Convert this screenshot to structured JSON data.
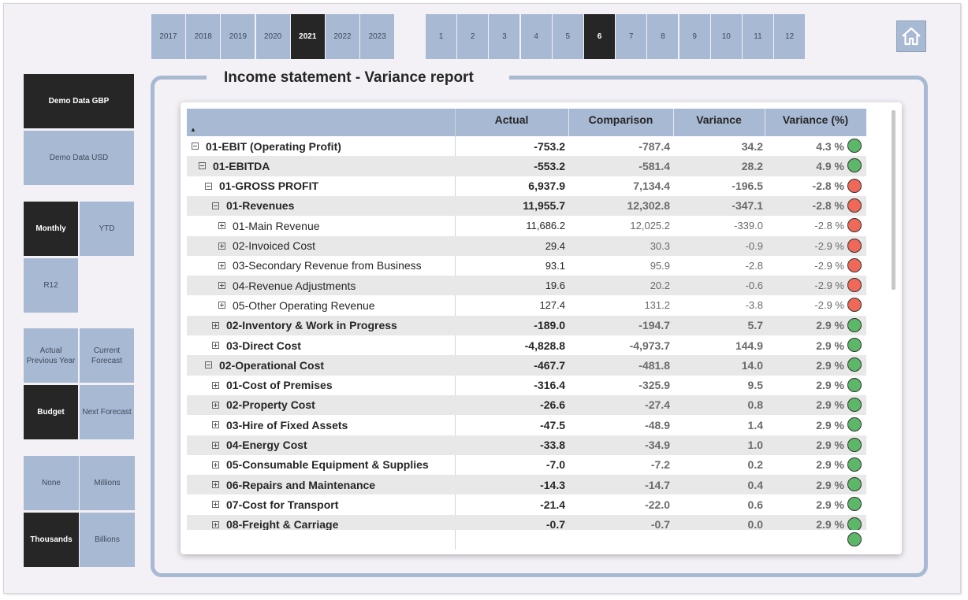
{
  "years": [
    {
      "label": "2017",
      "selected": false
    },
    {
      "label": "2018",
      "selected": false
    },
    {
      "label": "2019",
      "selected": false
    },
    {
      "label": "2020",
      "selected": false
    },
    {
      "label": "2021",
      "selected": true
    },
    {
      "label": "2022",
      "selected": false
    },
    {
      "label": "2023",
      "selected": false
    }
  ],
  "months": [
    {
      "label": "1",
      "selected": false
    },
    {
      "label": "2",
      "selected": false
    },
    {
      "label": "3",
      "selected": false
    },
    {
      "label": "4",
      "selected": false
    },
    {
      "label": "5",
      "selected": false
    },
    {
      "label": "6",
      "selected": true
    },
    {
      "label": "7",
      "selected": false
    },
    {
      "label": "8",
      "selected": false
    },
    {
      "label": "9",
      "selected": false
    },
    {
      "label": "10",
      "selected": false
    },
    {
      "label": "11",
      "selected": false
    },
    {
      "label": "12",
      "selected": false
    }
  ],
  "home_icon": "home-icon",
  "sidebar": {
    "dataset": [
      {
        "label": "Demo Data GBP",
        "selected": true
      },
      {
        "label": "Demo Data USD",
        "selected": false
      }
    ],
    "period": [
      {
        "label": "Monthly",
        "selected": true
      },
      {
        "label": "YTD",
        "selected": false
      },
      {
        "label": "R12",
        "selected": false
      }
    ],
    "comparison": [
      {
        "label": "Actual Previous Year",
        "selected": false
      },
      {
        "label": "Current Forecast",
        "selected": false
      },
      {
        "label": "Budget",
        "selected": true
      },
      {
        "label": "Next Forecast",
        "selected": false
      }
    ],
    "units": [
      {
        "label": "None",
        "selected": false
      },
      {
        "label": "Millions",
        "selected": false
      },
      {
        "label": "Thousands",
        "selected": true
      },
      {
        "label": "Billions",
        "selected": false
      }
    ]
  },
  "report": {
    "title": "Income statement - Variance report",
    "columns": {
      "actual": "Actual",
      "comparison": "Comparison",
      "variance": "Variance",
      "variance_pct": "Variance (%)"
    },
    "colors": {
      "good": "#5cb868",
      "bad": "#f06857"
    },
    "rows": [
      {
        "label": "01-EBIT (Operating Profit)",
        "level": 0,
        "toggle": "minus",
        "bold": true,
        "actual": "-753.2",
        "comparison": "-787.4",
        "variance": "34.2",
        "pct": "4.3 %",
        "status": "good"
      },
      {
        "label": "01-EBITDA",
        "level": 1,
        "toggle": "minus",
        "bold": true,
        "actual": "-553.2",
        "comparison": "-581.4",
        "variance": "28.2",
        "pct": "4.9 %",
        "status": "good"
      },
      {
        "label": "01-GROSS PROFIT",
        "level": 2,
        "toggle": "minus",
        "bold": true,
        "actual": "6,937.9",
        "comparison": "7,134.4",
        "variance": "-196.5",
        "pct": "-2.8 %",
        "status": "bad"
      },
      {
        "label": "01-Revenues",
        "level": 3,
        "toggle": "minus",
        "bold": true,
        "actual": "11,955.7",
        "comparison": "12,302.8",
        "variance": "-347.1",
        "pct": "-2.8 %",
        "status": "bad"
      },
      {
        "label": "01-Main Revenue",
        "level": 4,
        "toggle": "plus",
        "bold": false,
        "actual": "11,686.2",
        "comparison": "12,025.2",
        "variance": "-339.0",
        "pct": "-2.8 %",
        "status": "bad"
      },
      {
        "label": "02-Invoiced Cost",
        "level": 4,
        "toggle": "plus",
        "bold": false,
        "actual": "29.4",
        "comparison": "30.3",
        "variance": "-0.9",
        "pct": "-2.9 %",
        "status": "bad"
      },
      {
        "label": "03-Secondary Revenue from Business",
        "level": 4,
        "toggle": "plus",
        "bold": false,
        "actual": "93.1",
        "comparison": "95.9",
        "variance": "-2.8",
        "pct": "-2.9 %",
        "status": "bad"
      },
      {
        "label": "04-Revenue Adjustments",
        "level": 4,
        "toggle": "plus",
        "bold": false,
        "actual": "19.6",
        "comparison": "20.2",
        "variance": "-0.6",
        "pct": "-2.9 %",
        "status": "bad"
      },
      {
        "label": "05-Other Operating Revenue",
        "level": 4,
        "toggle": "plus",
        "bold": false,
        "actual": "127.4",
        "comparison": "131.2",
        "variance": "-3.8",
        "pct": "-2.9 %",
        "status": "bad"
      },
      {
        "label": "02-Inventory & Work in Progress",
        "level": 3,
        "toggle": "plus",
        "bold": true,
        "actual": "-189.0",
        "comparison": "-194.7",
        "variance": "5.7",
        "pct": "2.9 %",
        "status": "good"
      },
      {
        "label": "03-Direct Cost",
        "level": 3,
        "toggle": "plus",
        "bold": true,
        "actual": "-4,828.8",
        "comparison": "-4,973.7",
        "variance": "144.9",
        "pct": "2.9 %",
        "status": "good"
      },
      {
        "label": "02-Operational Cost",
        "level": 2,
        "toggle": "minus",
        "bold": true,
        "actual": "-467.7",
        "comparison": "-481.8",
        "variance": "14.0",
        "pct": "2.9 %",
        "status": "good"
      },
      {
        "label": "01-Cost of Premises",
        "level": 3,
        "toggle": "plus",
        "bold": true,
        "actual": "-316.4",
        "comparison": "-325.9",
        "variance": "9.5",
        "pct": "2.9 %",
        "status": "good"
      },
      {
        "label": "02-Property Cost",
        "level": 3,
        "toggle": "plus",
        "bold": true,
        "actual": "-26.6",
        "comparison": "-27.4",
        "variance": "0.8",
        "pct": "2.9 %",
        "status": "good"
      },
      {
        "label": "03-Hire of Fixed Assets",
        "level": 3,
        "toggle": "plus",
        "bold": true,
        "actual": "-47.5",
        "comparison": "-48.9",
        "variance": "1.4",
        "pct": "2.9 %",
        "status": "good"
      },
      {
        "label": "04-Energy Cost",
        "level": 3,
        "toggle": "plus",
        "bold": true,
        "actual": "-33.8",
        "comparison": "-34.9",
        "variance": "1.0",
        "pct": "2.9 %",
        "status": "good"
      },
      {
        "label": "05-Consumable Equipment & Supplies",
        "level": 3,
        "toggle": "plus",
        "bold": true,
        "actual": "-7.0",
        "comparison": "-7.2",
        "variance": "0.2",
        "pct": "2.9 %",
        "status": "good"
      },
      {
        "label": "06-Repairs and Maintenance",
        "level": 3,
        "toggle": "plus",
        "bold": true,
        "actual": "-14.3",
        "comparison": "-14.7",
        "variance": "0.4",
        "pct": "2.9 %",
        "status": "good"
      },
      {
        "label": "07-Cost for Transport",
        "level": 3,
        "toggle": "plus",
        "bold": true,
        "actual": "-21.4",
        "comparison": "-22.0",
        "variance": "0.6",
        "pct": "2.9 %",
        "status": "good"
      },
      {
        "label": "08-Freight & Carriage",
        "level": 3,
        "toggle": "plus",
        "bold": true,
        "actual": "-0.7",
        "comparison": "-0.7",
        "variance": "0.0",
        "pct": "2.9 %",
        "status": "good"
      }
    ],
    "footer_status": "good"
  }
}
